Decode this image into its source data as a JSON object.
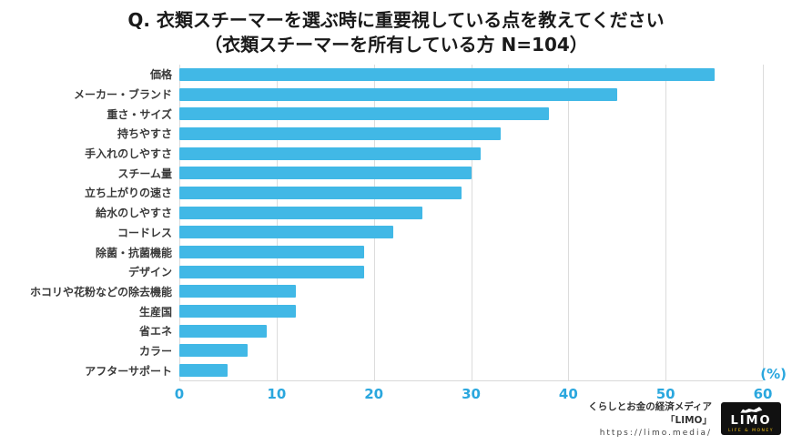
{
  "title": {
    "line1": "Q. 衣類スチーマーを選ぶ時に重要視している点を教えてください",
    "line2": "（衣類スチーマーを所有している方 N=104）"
  },
  "chart_data": {
    "type": "bar",
    "orientation": "horizontal",
    "title": "Q. 衣類スチーマーを選ぶ時に重要視している点を教えてください（衣類スチーマーを所有している方 N=104）",
    "categories": [
      "価格",
      "メーカー・ブランド",
      "重さ・サイズ",
      "持ちやすさ",
      "手入れのしやすさ",
      "スチーム量",
      "立ち上がりの速さ",
      "給水のしやすさ",
      "コードレス",
      "除菌・抗菌機能",
      "デザイン",
      "ホコリや花粉などの除去機能",
      "生産国",
      "省エネ",
      "カラー",
      "アフターサポート"
    ],
    "values": [
      55,
      45,
      38,
      33,
      31,
      30,
      29,
      25,
      22,
      19,
      19,
      12,
      12,
      9,
      7,
      5
    ],
    "xlabel": "(%)",
    "ylabel": "",
    "xlim": [
      0,
      60
    ],
    "ticks": [
      0,
      10,
      20,
      30,
      40,
      50,
      60
    ],
    "grid": true,
    "bar_color": "#41b8e6",
    "tick_color": "#2aa7de"
  },
  "footer": {
    "credit_line1": "くらしとお金の経済メディア",
    "credit_line2": "「LIMO」",
    "credit_url": "https://limo.media/",
    "logo_text": "LIMO",
    "logo_sub": "LIFE & MONEY"
  }
}
